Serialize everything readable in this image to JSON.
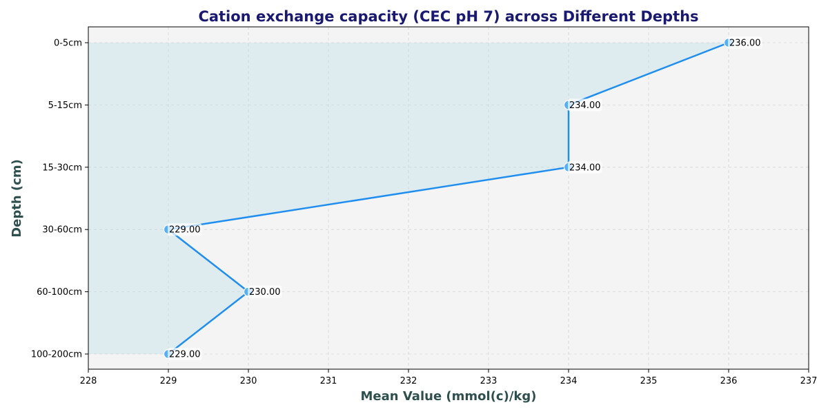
{
  "chart_data": {
    "type": "line",
    "orientation": "horizontal",
    "title": "Cation exchange capacity (CEC pH 7) across Different Depths",
    "xlabel": "Mean Value (mmol(c)/kg)",
    "ylabel": "Depth (cm)",
    "categories": [
      "0-5cm",
      "5-15cm",
      "15-30cm",
      "30-60cm",
      "60-100cm",
      "100-200cm"
    ],
    "values": [
      236,
      234,
      234,
      229,
      230,
      229
    ],
    "value_labels": [
      "236.00",
      "234.00",
      "234.00",
      "229.00",
      "230.00",
      "229.00"
    ],
    "xlim": [
      228,
      237
    ],
    "xticks": [
      "228",
      "229",
      "230",
      "231",
      "232",
      "233",
      "234",
      "235",
      "236",
      "237"
    ],
    "grid": true,
    "fill_area": true,
    "colors": {
      "line": "#1f8ef1",
      "marker": "#5aaef5",
      "fill": "#add8e6",
      "plot_bg": "#f4f4f4",
      "title": "#191970",
      "axis_label": "#2f4f4f"
    }
  }
}
